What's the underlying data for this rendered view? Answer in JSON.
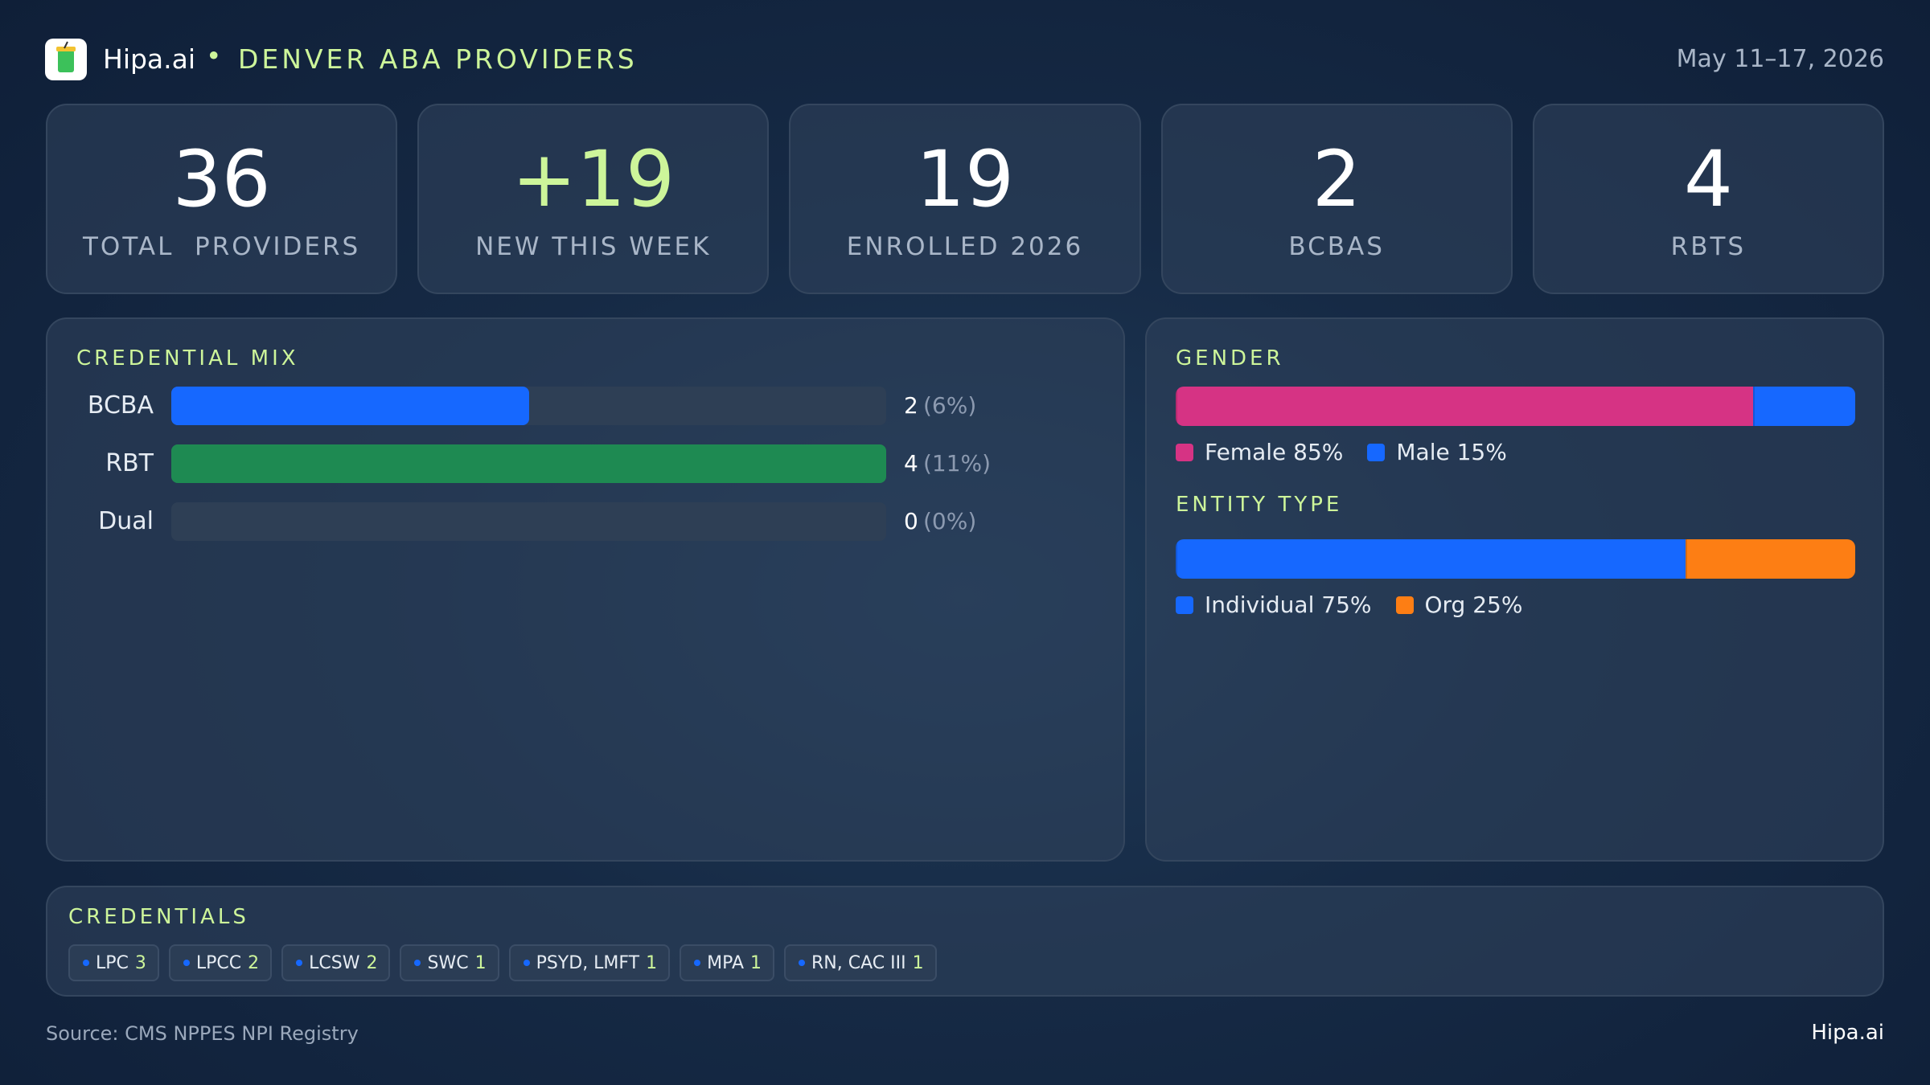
{
  "header": {
    "brand": "Hipa.ai",
    "title": "DENVER ABA PROVIDERS",
    "date": "May 11–17, 2026"
  },
  "kpis": [
    {
      "value": 36,
      "label": "TOTAL  PROVIDERS",
      "color": "#ffffff"
    },
    {
      "value": 19,
      "value_label": "+19",
      "label": "NEW THIS WEEK",
      "color": "#cdf59a"
    },
    {
      "value": 19,
      "label": "ENROLLED 2026",
      "color": "#ffffff"
    },
    {
      "value": 2,
      "label": "BCBAS",
      "color": "#ffffff"
    },
    {
      "value": 4,
      "label": "RBTS",
      "color": "#ffffff"
    }
  ],
  "credential_mix": {
    "title": "CREDENTIAL  MIX",
    "categories": [
      "BCBA",
      "RBT",
      "Dual"
    ],
    "values": [
      2,
      4,
      0
    ],
    "percent_labels": [
      "(6%)",
      "(11%)",
      "(0%)"
    ],
    "colors": [
      "#1668ff",
      "#1e8a52",
      "#1668ff"
    ],
    "xlim": [
      0,
      4
    ]
  },
  "gender": {
    "title": "GENDER",
    "segments": [
      {
        "name": "Female 85%",
        "value": 85,
        "color": "#d63384"
      },
      {
        "name": "Male 15%",
        "value": 15,
        "color": "#1668ff"
      }
    ]
  },
  "entity_type": {
    "title": "ENTITY  TYPE",
    "segments": [
      {
        "name": "Individual 75%",
        "value": 75,
        "color": "#1668ff"
      },
      {
        "name": "Org 25%",
        "value": 25,
        "color": "#fd7e14"
      }
    ]
  },
  "credentials": {
    "title": "CREDENTIALS",
    "items": [
      {
        "name": "LPC",
        "count": 3
      },
      {
        "name": "LPCC",
        "count": 2
      },
      {
        "name": "LCSW",
        "count": 2
      },
      {
        "name": "SWC",
        "count": 1
      },
      {
        "name": "PSYD, LMFT",
        "count": 1
      },
      {
        "name": "MPA",
        "count": 1
      },
      {
        "name": "RN, CAC III",
        "count": 1
      }
    ]
  },
  "footer": {
    "source": "Source: CMS NPPES NPI Registry",
    "brand": "Hipa.ai"
  }
}
